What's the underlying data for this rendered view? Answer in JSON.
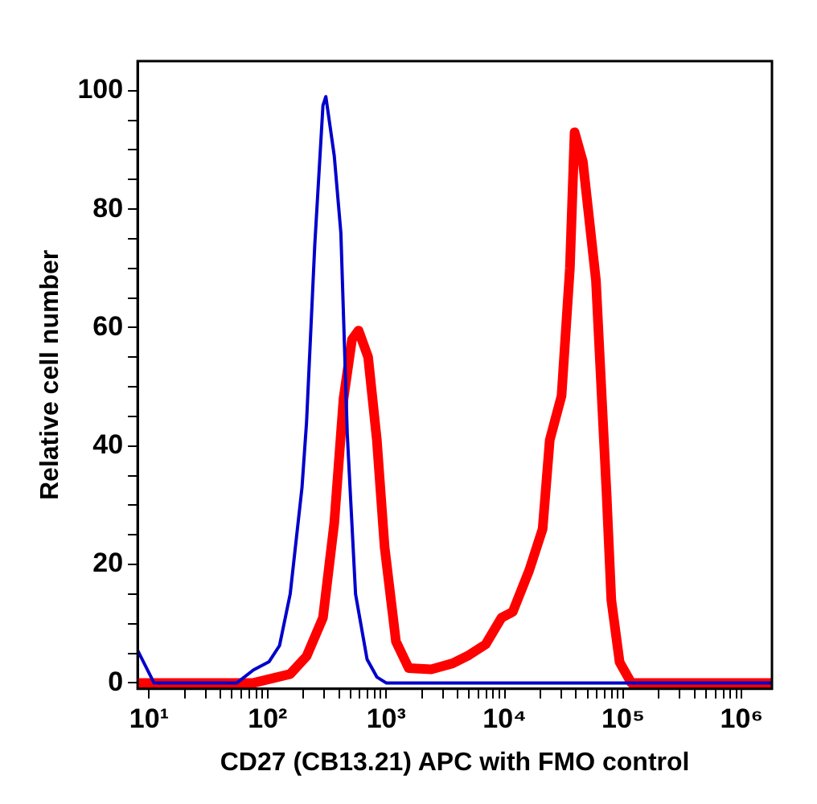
{
  "chart_data": {
    "type": "line",
    "xlabel": "CD27 (CB13.21) APC with FMO control",
    "ylabel": "Relative cell number",
    "log": "x",
    "grid": false,
    "legend": false,
    "marker": "none",
    "line_style": "solid",
    "xlim": [
      8,
      1800000
    ],
    "xticks": [
      {
        "value": 10,
        "label": "10¹"
      },
      {
        "value": 20,
        "label": null
      },
      {
        "value": 30,
        "label": null
      },
      {
        "value": 40,
        "label": null
      },
      {
        "value": 50,
        "label": null
      },
      {
        "value": 60,
        "label": null
      },
      {
        "value": 70,
        "label": null
      },
      {
        "value": 80,
        "label": null
      },
      {
        "value": 90,
        "label": null
      },
      {
        "value": 100,
        "label": "10²"
      },
      {
        "value": 200,
        "label": null
      },
      {
        "value": 300,
        "label": null
      },
      {
        "value": 400,
        "label": null
      },
      {
        "value": 500,
        "label": null
      },
      {
        "value": 600,
        "label": null
      },
      {
        "value": 700,
        "label": null
      },
      {
        "value": 800,
        "label": null
      },
      {
        "value": 900,
        "label": null
      },
      {
        "value": 1000,
        "label": "10³"
      },
      {
        "value": 2000,
        "label": null
      },
      {
        "value": 3000,
        "label": null
      },
      {
        "value": 4000,
        "label": null
      },
      {
        "value": 5000,
        "label": null
      },
      {
        "value": 6000,
        "label": null
      },
      {
        "value": 7000,
        "label": null
      },
      {
        "value": 8000,
        "label": null
      },
      {
        "value": 9000,
        "label": null
      },
      {
        "value": 10000,
        "label": "10⁴"
      },
      {
        "value": 20000,
        "label": null
      },
      {
        "value": 30000,
        "label": null
      },
      {
        "value": 40000,
        "label": null
      },
      {
        "value": 50000,
        "label": null
      },
      {
        "value": 60000,
        "label": null
      },
      {
        "value": 70000,
        "label": null
      },
      {
        "value": 80000,
        "label": null
      },
      {
        "value": 90000,
        "label": null
      },
      {
        "value": 100000,
        "label": "10⁵"
      },
      {
        "value": 200000,
        "label": null
      },
      {
        "value": 300000,
        "label": null
      },
      {
        "value": 400000,
        "label": null
      },
      {
        "value": 500000,
        "label": null
      },
      {
        "value": 600000,
        "label": null
      },
      {
        "value": 700000,
        "label": null
      },
      {
        "value": 800000,
        "label": null
      },
      {
        "value": 900000,
        "label": null
      },
      {
        "value": 1000000,
        "label": "10⁶"
      }
    ],
    "ylim": [
      -1,
      105
    ],
    "yticks": [
      0,
      {
        "value": 5,
        "label": null
      },
      {
        "value": 10,
        "label": null
      },
      {
        "value": 15,
        "label": null
      },
      20,
      {
        "value": 25,
        "label": null
      },
      {
        "value": 30,
        "label": null
      },
      {
        "value": 35,
        "label": null
      },
      40,
      {
        "value": 45,
        "label": null
      },
      {
        "value": 50,
        "label": null
      },
      {
        "value": 55,
        "label": null
      },
      60,
      {
        "value": 65,
        "label": null
      },
      {
        "value": 70,
        "label": null
      },
      {
        "value": 75,
        "label": null
      },
      80,
      {
        "value": 85,
        "label": null
      },
      {
        "value": 90,
        "label": null
      },
      {
        "value": 95,
        "label": null
      },
      100
    ],
    "series": [
      {
        "color": "#0000cc",
        "x": [
          8,
          11,
          55,
          76,
          103,
          126,
          155,
          195,
          213,
          250,
          293,
          310,
          365,
          415,
          470,
          552,
          690,
          835,
          1000,
          1800000
        ],
        "values": [
          5.5,
          0,
          0,
          2.2,
          3.6,
          6.3,
          15,
          33,
          44,
          74,
          97.5,
          99,
          89,
          76,
          42,
          15,
          4,
          1,
          0,
          0
        ]
      },
      {
        "color": "#ff0000",
        "x": [
          8,
          76,
          155,
          213,
          293,
          365,
          437,
          515,
          585,
          705,
          835,
          970,
          1210,
          1550,
          2400,
          3630,
          5000,
          6900,
          9400,
          11700,
          16100,
          20900,
          24000,
          30200,
          35500,
          38900,
          45700,
          58900,
          72400,
          79400,
          93300,
          117000,
          1800000
        ],
        "values": [
          0,
          0,
          1.5,
          4.5,
          11,
          27,
          48,
          58,
          59.5,
          55,
          41,
          23,
          7,
          2.5,
          2.3,
          3.3,
          4.7,
          6.5,
          11,
          12,
          19,
          26,
          41,
          48.5,
          70,
          93,
          88,
          68,
          32,
          14,
          3.5,
          0,
          0
        ]
      }
    ]
  }
}
